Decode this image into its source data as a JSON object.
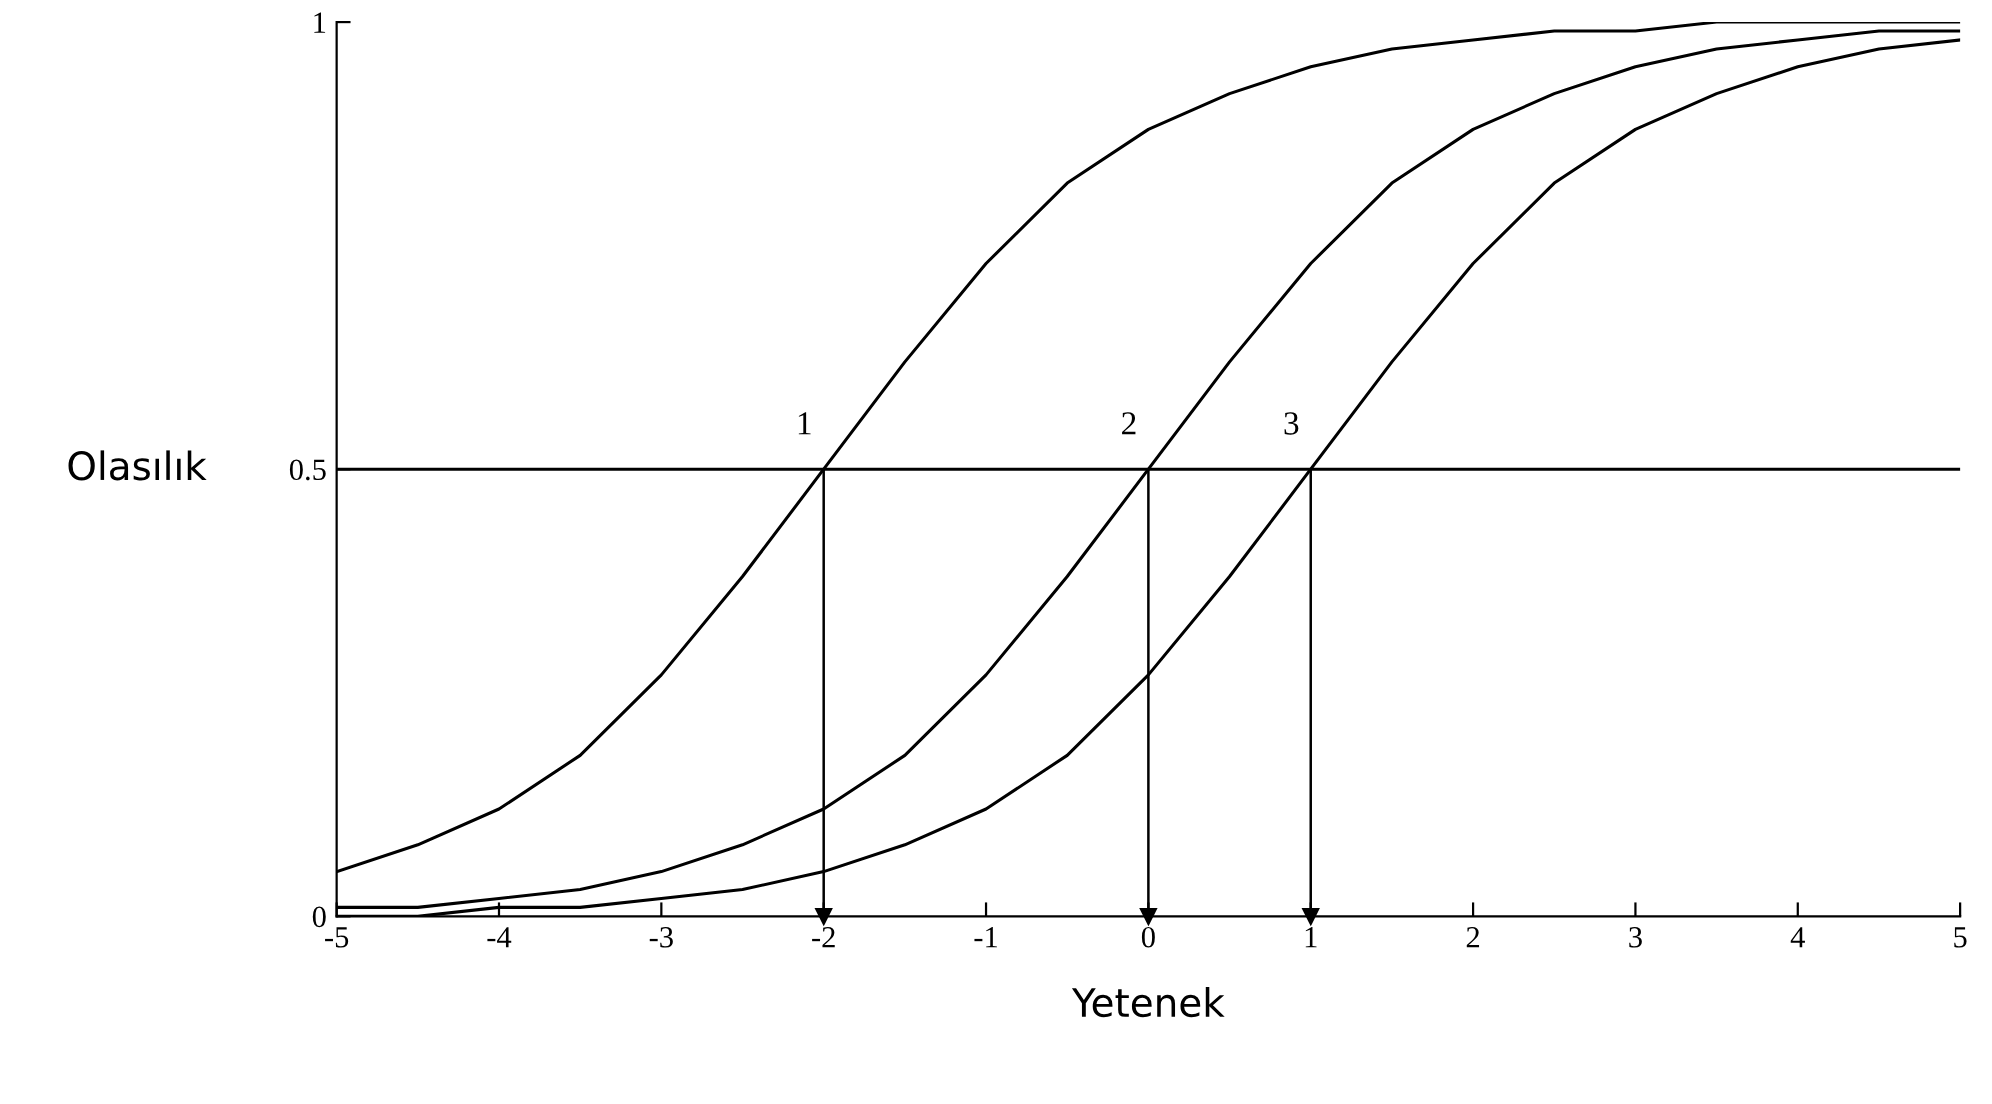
{
  "chart_data": {
    "type": "line",
    "xlabel": "Yetenek",
    "ylabel": "Olasılık",
    "x": [
      -5,
      -4.5,
      -4,
      -3.5,
      -3,
      -2.5,
      -2,
      -1.5,
      -1,
      -0.5,
      0,
      0.5,
      1,
      1.5,
      2,
      2.5,
      3,
      3.5,
      4,
      4.5,
      5
    ],
    "series": [
      {
        "color": "#000000",
        "values": [
          0.05,
          0.08,
          0.12,
          0.18,
          0.27,
          0.38,
          0.5,
          0.62,
          0.73,
          0.82,
          0.88,
          0.92,
          0.95,
          0.97,
          0.98,
          0.99,
          0.99,
          1,
          1,
          1,
          1
        ]
      },
      {
        "color": "#000000",
        "values": [
          0.01,
          0.01,
          0.02,
          0.03,
          0.05,
          0.08,
          0.12,
          0.18,
          0.27,
          0.38,
          0.5,
          0.62,
          0.73,
          0.82,
          0.88,
          0.92,
          0.95,
          0.97,
          0.98,
          0.99,
          0.99
        ]
      },
      {
        "color": "#000000",
        "values": [
          0,
          0,
          0.01,
          0.01,
          0.02,
          0.03,
          0.05,
          0.08,
          0.12,
          0.18,
          0.27,
          0.38,
          0.5,
          0.62,
          0.73,
          0.82,
          0.88,
          0.92,
          0.95,
          0.97,
          0.98
        ]
      }
    ],
    "xlim": [
      -5,
      5
    ],
    "xticks": [
      -5,
      -4,
      -3,
      -2,
      -1,
      0,
      1,
      2,
      3,
      4,
      5
    ],
    "ylim": [
      0,
      1
    ],
    "yticks": [
      0,
      0.5,
      1
    ],
    "ref_lines": [
      {
        "axis": "y",
        "value": 0.5,
        "color": "#000000",
        "line_style": "solid"
      },
      {
        "axis": "x",
        "value": -2,
        "color": "#000000",
        "line_style": "solid"
      },
      {
        "axis": "x",
        "value": 0,
        "color": "#000000",
        "line_style": "solid"
      },
      {
        "axis": "x",
        "value": 1,
        "color": "#000000",
        "line_style": "solid"
      }
    ],
    "annotations": [
      {
        "text": "1",
        "x": -2,
        "y": 0.5
      },
      {
        "text": "2",
        "x": 0,
        "y": 0.5
      },
      {
        "text": "3",
        "x": 1,
        "y": 0.5
      }
    ],
    "grid": false,
    "legend": false,
    "marker": "none",
    "line_style": "solid"
  }
}
